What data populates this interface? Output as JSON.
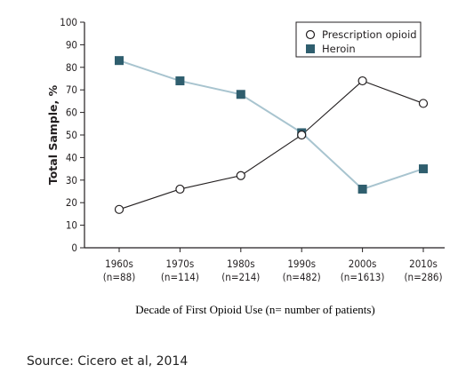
{
  "chart_data": {
    "type": "line",
    "categories": [
      "1960s",
      "1970s",
      "1980s",
      "1990s",
      "2000s",
      "2010s"
    ],
    "category_counts": [
      "(n=88)",
      "(n=114)",
      "(n=214)",
      "(n=482)",
      "(n=1613)",
      "(n=286)"
    ],
    "series": [
      {
        "name": "Prescription opioid",
        "values": [
          17,
          26,
          32,
          50,
          74,
          64
        ],
        "marker": "open-circle",
        "color": "#231f20"
      },
      {
        "name": "Heroin",
        "values": [
          83,
          74,
          68,
          51,
          26,
          35
        ],
        "marker": "filled-square",
        "color": "#a8c4cf",
        "marker_color": "#2f5e6e"
      }
    ],
    "ylabel": "Total Sample, %",
    "xlabel": "Decade of First Opioid Use (n= number of patients)",
    "ylim": [
      0,
      100
    ],
    "yticks": [
      0,
      10,
      20,
      30,
      40,
      50,
      60,
      70,
      80,
      90,
      100
    ],
    "grid": false,
    "legend_position": "top-right"
  },
  "source": "Source: Cicero et al, 2014"
}
